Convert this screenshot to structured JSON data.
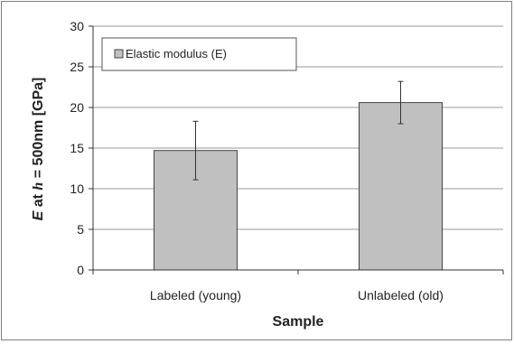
{
  "chart_data": {
    "type": "bar",
    "categories": [
      "Labeled (young)",
      "Unlabeled (old)"
    ],
    "series": [
      {
        "name": "Elastic modulus (E)",
        "values": [
          14.7,
          20.6
        ],
        "error": [
          3.6,
          2.6
        ]
      }
    ],
    "xlabel": "Sample",
    "ylabel_parts": [
      "E",
      " at ",
      "h",
      " = 500nm  [GPa]"
    ],
    "ylim": [
      0,
      30
    ],
    "yticks": [
      0,
      5,
      10,
      15,
      20,
      25,
      30
    ],
    "grid": true,
    "legend": "top-left",
    "colors": {
      "bar_fill": "#c0c0c0",
      "bar_stroke": "#444444",
      "grid": "#9a9a9a",
      "axis": "#333333"
    }
  }
}
